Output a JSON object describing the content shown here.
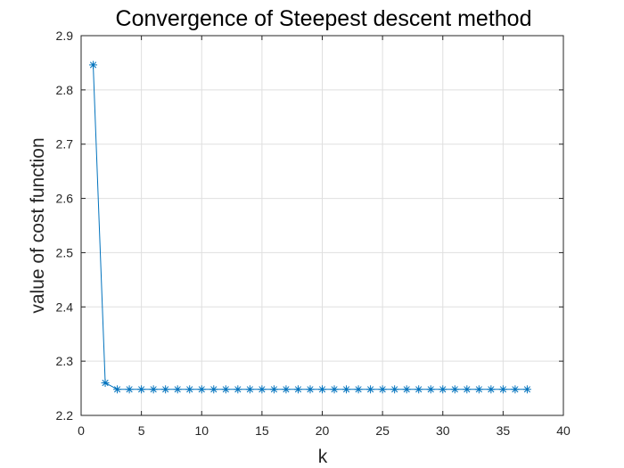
{
  "chart_data": {
    "type": "line",
    "title": "Convergence of Steepest descent method",
    "xlabel": "k",
    "ylabel": "value of cost function",
    "xlim": [
      0,
      40
    ],
    "ylim": [
      2.2,
      2.9
    ],
    "xticks": [
      0,
      5,
      10,
      15,
      20,
      25,
      30,
      35,
      40
    ],
    "yticks": [
      2.2,
      2.3,
      2.4,
      2.5,
      2.6,
      2.7,
      2.8,
      2.9
    ],
    "xtick_labels": [
      "0",
      "5",
      "10",
      "15",
      "20",
      "25",
      "30",
      "35",
      "40"
    ],
    "ytick_labels": [
      "2.2",
      "2.3",
      "2.4",
      "2.5",
      "2.6",
      "2.7",
      "2.8",
      "2.9"
    ],
    "grid": true,
    "marker": "asterisk",
    "color": "#0072BD",
    "series": [
      {
        "x": [
          1,
          2,
          3,
          4,
          5,
          6,
          7,
          8,
          9,
          10,
          11,
          12,
          13,
          14,
          15,
          16,
          17,
          18,
          19,
          20,
          21,
          22,
          23,
          24,
          25,
          26,
          27,
          28,
          29,
          30,
          31,
          32,
          33,
          34,
          35,
          36,
          37
        ],
        "values": [
          2.846,
          2.26,
          2.248,
          2.248,
          2.248,
          2.248,
          2.248,
          2.248,
          2.248,
          2.248,
          2.248,
          2.248,
          2.248,
          2.248,
          2.248,
          2.248,
          2.248,
          2.248,
          2.248,
          2.248,
          2.248,
          2.248,
          2.248,
          2.248,
          2.248,
          2.248,
          2.248,
          2.248,
          2.248,
          2.248,
          2.248,
          2.248,
          2.248,
          2.248,
          2.248,
          2.248,
          2.248
        ]
      }
    ]
  }
}
